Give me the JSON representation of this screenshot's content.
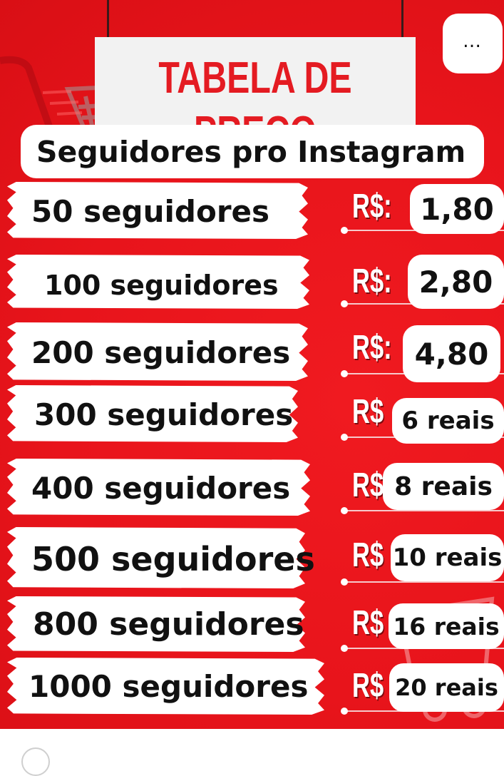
{
  "poster": {
    "title": "TABELA DE PREÇO",
    "subtitle": "Seguidores pro Instagram",
    "currency_label": "R$:",
    "currency_label_short": "R$",
    "colors": {
      "background": "#e8141b",
      "title": "#e41b22",
      "panel": "#ffffff"
    }
  },
  "menu": {
    "more_label": "…",
    "icon": "more-horizontal-icon"
  },
  "prices": [
    {
      "quantity": "50 seguidores",
      "price": "1,80"
    },
    {
      "quantity": "100 seguidores",
      "price": "2,80"
    },
    {
      "quantity": "200 seguidores",
      "price": "4,80"
    },
    {
      "quantity": "300 seguidores",
      "price": "6 reais"
    },
    {
      "quantity": "400 seguidores",
      "price": "8 reais"
    },
    {
      "quantity": "500 seguidores",
      "price": "10 reais"
    },
    {
      "quantity": "800 seguidores",
      "price": "16 reais"
    },
    {
      "quantity": "1000 seguidores",
      "price": "20 reais"
    }
  ]
}
